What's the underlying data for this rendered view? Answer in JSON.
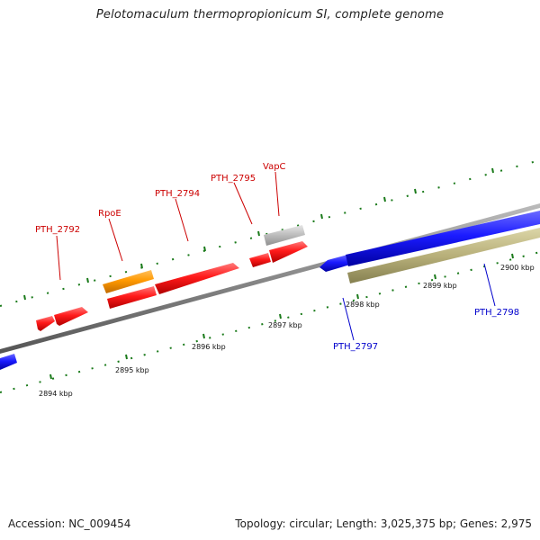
{
  "title": "Pelotomaculum thermopropionicum SI, complete genome",
  "footer": {
    "accession": "Accession: NC_009454",
    "summary": "Topology: circular; Length: 3,025,375 bp; Genes: 2,975"
  },
  "colors": {
    "forward_gene": "#ff1a1a",
    "reverse_gene": "#1a1aff",
    "highlight_gene": "#ff9900",
    "pseudo_gene": "#bbbbbb",
    "rna_gene": "#b8b07a",
    "backbone": "#888888",
    "tick": "#1a7a1a",
    "forward_label": "#cc0000",
    "reverse_label": "#0000cc"
  },
  "gene_labels": [
    {
      "text": "PTH_2792",
      "strand": "forward"
    },
    {
      "text": "RpoE",
      "strand": "forward"
    },
    {
      "text": "PTH_2794",
      "strand": "forward"
    },
    {
      "text": "PTH_2795",
      "strand": "forward"
    },
    {
      "text": "VapC",
      "strand": "forward"
    },
    {
      "text": "PTH_2797",
      "strand": "reverse"
    },
    {
      "text": "PTH_2798",
      "strand": "reverse"
    }
  ],
  "kbp_labels": [
    "2894 kbp",
    "2895 kbp",
    "2896 kbp",
    "2897 kbp",
    "2898 kbp",
    "2899 kbp",
    "2900 kbp"
  ]
}
